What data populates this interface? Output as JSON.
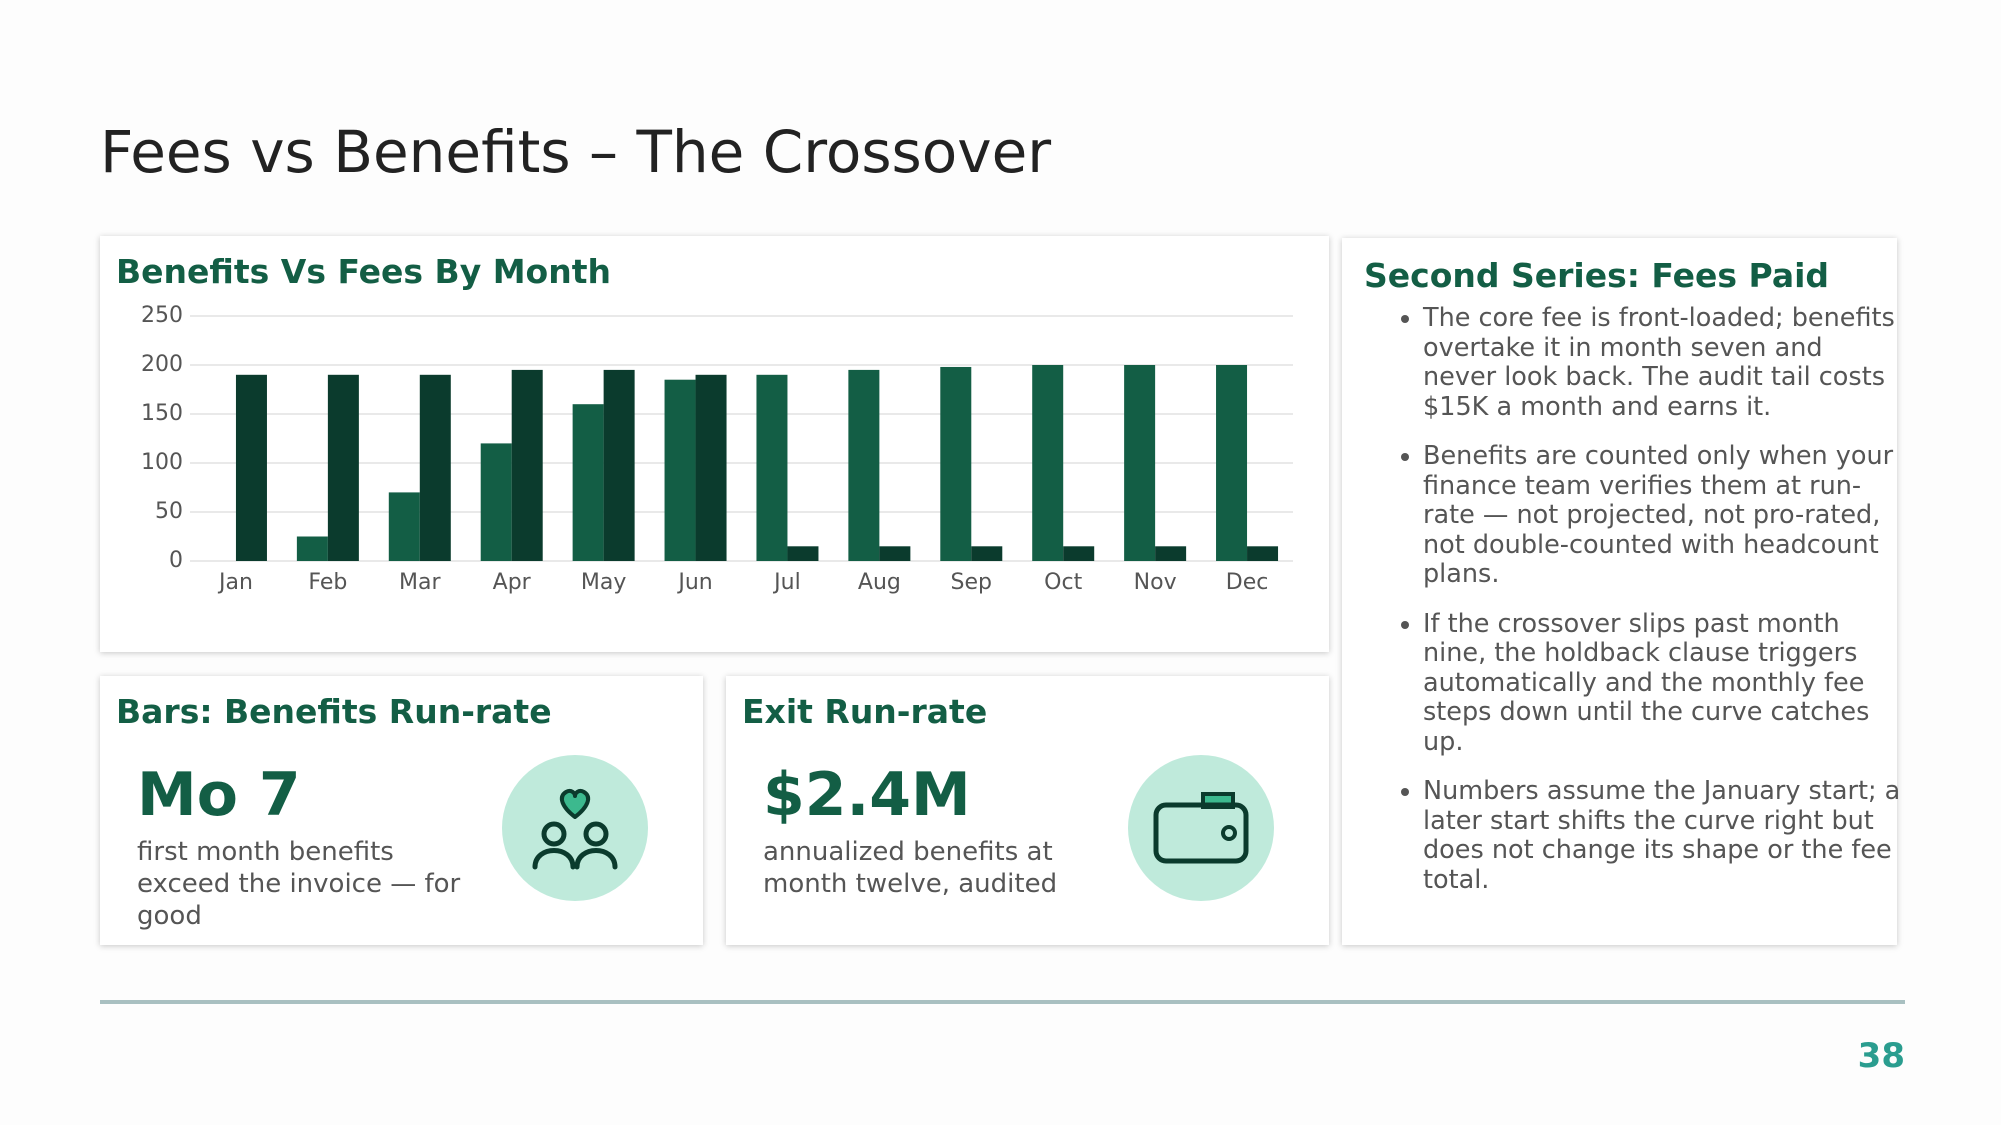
{
  "title": "Fees vs Benefits – The Crossover",
  "chart_data": {
    "type": "bar",
    "title": "Benefits Vs Fees By Month",
    "categories": [
      "Jan",
      "Feb",
      "Mar",
      "Apr",
      "May",
      "Jun",
      "Jul",
      "Aug",
      "Sep",
      "Oct",
      "Nov",
      "Dec"
    ],
    "series": [
      {
        "color": "#135e45",
        "values": [
          0,
          25,
          70,
          120,
          160,
          185,
          190,
          195,
          198,
          200,
          200,
          200
        ]
      },
      {
        "color": "#0b3b2d",
        "values": [
          190,
          190,
          190,
          195,
          195,
          190,
          15,
          15,
          15,
          15,
          15,
          15
        ]
      }
    ],
    "ylim": [
      0,
      250
    ],
    "yticks": [
      0,
      50,
      100,
      150,
      200,
      250
    ],
    "grid": true
  },
  "kpis": [
    {
      "title": "Bars: Benefits Run-rate",
      "value": "Mo 7",
      "caption": "first month benefits exceed the invoice — for good"
    },
    {
      "title": "Exit Run-rate",
      "value": "$2.4M",
      "caption": "annualized benefits at month twelve, audited"
    }
  ],
  "notes": {
    "title": "Second Series: Fees Paid",
    "bullets": [
      "The core fee is front-loaded; benefits overtake it in month seven and never look back. The audit tail costs $15K a month and earns it.",
      "Benefits are counted only when your finance team verifies them at run-rate — not projected, not pro-rated, not double-counted with headcount plans.",
      "If the crossover slips past month nine, the holdback clause triggers automatically and the monthly fee steps down until the curve catches up.",
      "Numbers assume the January start; a later start shifts the curve right but does not change its shape or the fee total."
    ]
  },
  "page_number": "38"
}
